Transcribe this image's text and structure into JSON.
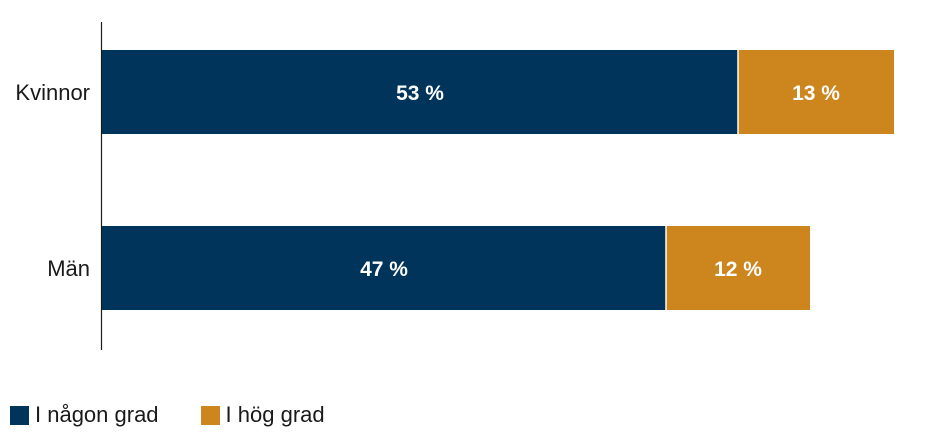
{
  "chart_data": {
    "type": "bar",
    "orientation": "horizontal",
    "stacked": true,
    "categories": [
      "Kvinnor",
      "Män"
    ],
    "series": [
      {
        "name": "I någon grad",
        "values": [
          53,
          47
        ],
        "labels": [
          "53 %",
          "47 %"
        ],
        "color": "#00345a"
      },
      {
        "name": "I hög grad",
        "values": [
          13,
          12
        ],
        "labels": [
          "13 %",
          "12 %"
        ],
        "color": "#cd851e"
      }
    ],
    "xlim": [
      0,
      66
    ],
    "grid": false,
    "legend": "bottom-left"
  }
}
